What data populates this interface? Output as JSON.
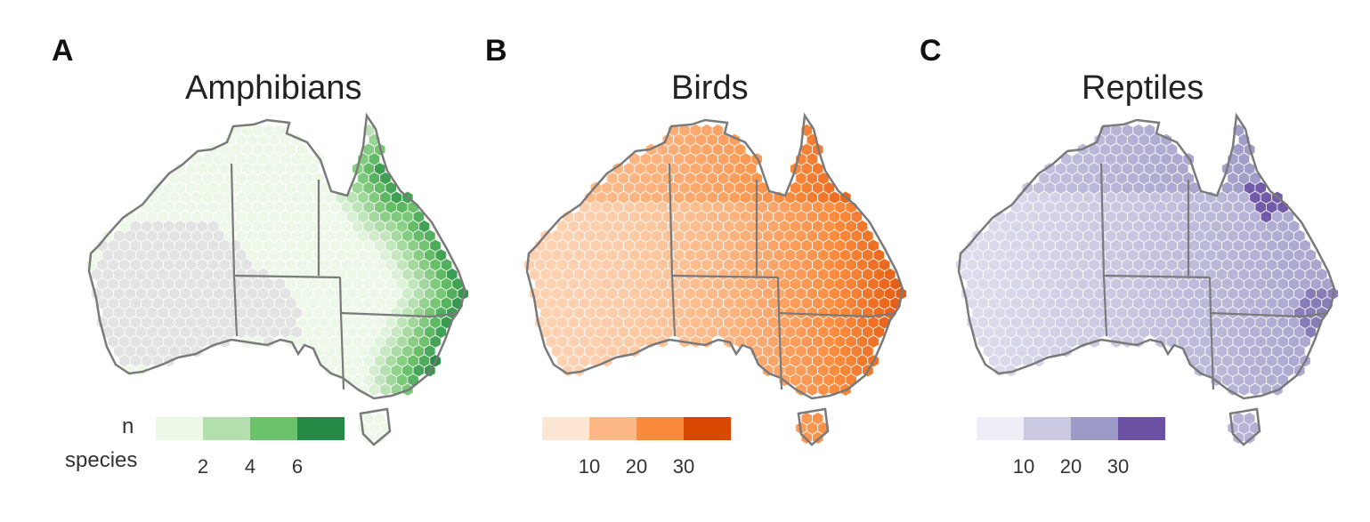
{
  "panels": [
    {
      "letter": "A",
      "title": "Amphibians",
      "legend_title_line1": "n",
      "legend_title_line2": "species",
      "legend_colors": [
        "#edf8e9",
        "#b3dfad",
        "#6cc26a",
        "#238b45"
      ],
      "legend_ticks": [
        "2",
        "4",
        "6"
      ],
      "no_data_color": "#e3e3e3",
      "gradient": "east-coast-high"
    },
    {
      "letter": "B",
      "title": "Birds",
      "legend_colors": [
        "#fee6d5",
        "#fdb886",
        "#fb8a3c",
        "#d94801"
      ],
      "legend_ticks": [
        "10",
        "20",
        "30"
      ],
      "gradient": "east-high"
    },
    {
      "letter": "C",
      "title": "Reptiles",
      "legend_colors": [
        "#efedf5",
        "#cbc9e2",
        "#9e9ac8",
        "#6a51a3"
      ],
      "legend_ticks": [
        "10",
        "20",
        "30"
      ],
      "gradient": "northeast-high"
    }
  ],
  "border_color": "#7a7a7a"
}
